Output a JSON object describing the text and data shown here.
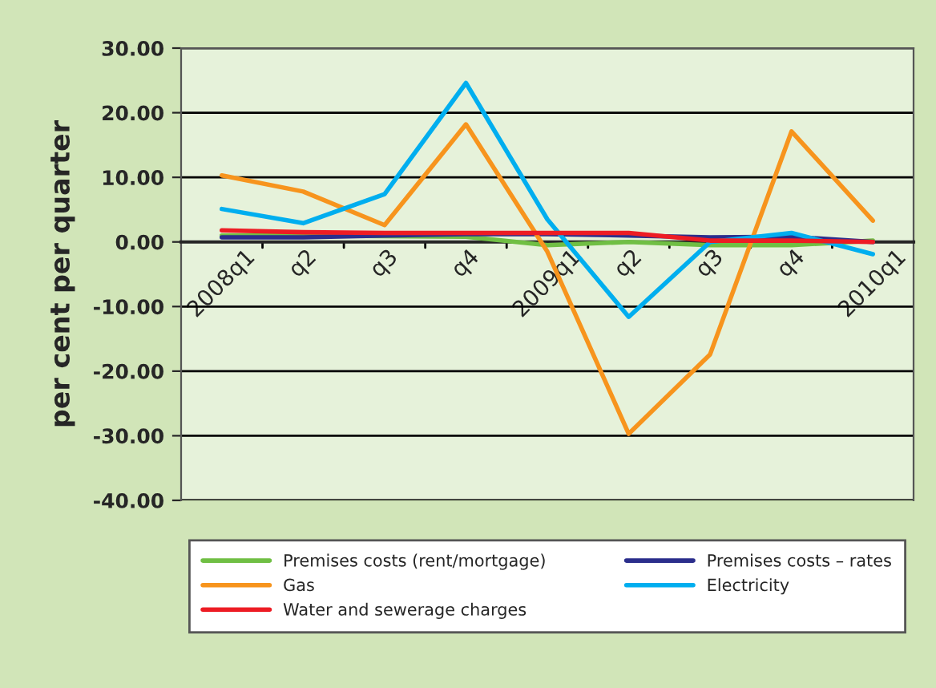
{
  "chart_data": {
    "type": "line",
    "ylabel": "per cent per quarter",
    "categories": [
      "2008q1",
      "q2",
      "q3",
      "q4",
      "2009q1",
      "q2",
      "q3",
      "q4",
      "2010q1"
    ],
    "series": [
      {
        "name": "Premises costs (rent/mortgage)",
        "color": "#70bf44",
        "values": [
          1.0,
          1.0,
          0.9,
          0.8,
          -0.5,
          0.0,
          -0.5,
          -0.5,
          0.2
        ]
      },
      {
        "name": "Premises costs – rates",
        "color": "#2b2e8c",
        "values": [
          0.7,
          0.7,
          1.0,
          1.2,
          1.2,
          1.0,
          0.7,
          0.8,
          0.0
        ]
      },
      {
        "name": "Gas",
        "color": "#f7941d",
        "values": [
          10.3,
          7.8,
          2.6,
          18.2,
          -1.5,
          -29.7,
          -17.4,
          17.1,
          3.3
        ]
      },
      {
        "name": "Electricity",
        "color": "#00aeef",
        "values": [
          5.1,
          2.9,
          7.4,
          24.6,
          3.5,
          -11.6,
          0.0,
          1.4,
          -1.9
        ]
      },
      {
        "name": "Water and sewerage charges",
        "color": "#ed1c24",
        "values": [
          1.8,
          1.5,
          1.4,
          1.4,
          1.4,
          1.4,
          0.2,
          0.2,
          0.0
        ]
      }
    ],
    "ylim": [
      -40,
      30
    ],
    "yticks": [
      {
        "value": -40,
        "label": "-40.00"
      },
      {
        "value": -30,
        "label": "-30.00"
      },
      {
        "value": -20,
        "label": "-20.00"
      },
      {
        "value": -10,
        "label": "-10.00"
      },
      {
        "value": 0,
        "label": "0.00"
      },
      {
        "value": 10,
        "label": "10.00"
      },
      {
        "value": 20,
        "label": "20.00"
      },
      {
        "value": 30,
        "label": "30.00"
      }
    ],
    "grid": "y",
    "legend": "bottom",
    "marker": "none",
    "line_style": "solid"
  }
}
